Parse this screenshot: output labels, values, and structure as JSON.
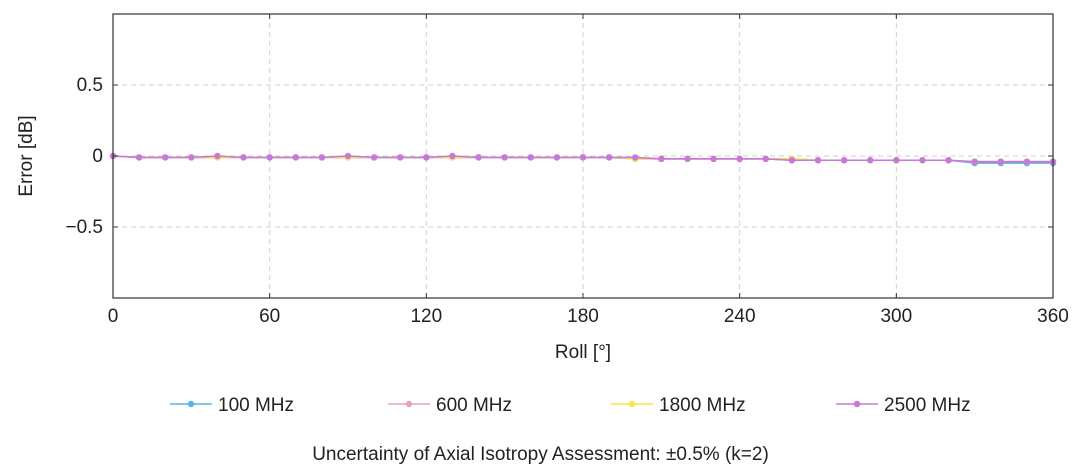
{
  "chart_data": {
    "type": "line",
    "xlabel": "Roll [°]",
    "ylabel": "Error [dB]",
    "xlim": [
      0,
      360
    ],
    "ylim": [
      -1,
      1
    ],
    "xticks": [
      0,
      60,
      120,
      180,
      240,
      300,
      360
    ],
    "xtick_labels": [
      "0",
      "60",
      "120",
      "180",
      "240",
      "300",
      "360"
    ],
    "yticks": [
      -0.5,
      0,
      0.5
    ],
    "ytick_labels": [
      "−0.5",
      "0",
      "0.5"
    ],
    "grid": true,
    "legend_position": "bottom",
    "x": [
      0,
      10,
      20,
      30,
      40,
      50,
      60,
      70,
      80,
      90,
      100,
      110,
      120,
      130,
      140,
      150,
      160,
      170,
      180,
      190,
      200,
      210,
      220,
      230,
      240,
      250,
      260,
      270,
      280,
      290,
      300,
      310,
      320,
      330,
      340,
      350,
      360
    ],
    "series": [
      {
        "name": "100 MHz",
        "color": "#5ab4e5",
        "values": [
          0,
          -0.01,
          -0.01,
          -0.01,
          -0.01,
          -0.01,
          -0.01,
          -0.01,
          -0.01,
          -0.01,
          -0.01,
          -0.01,
          -0.01,
          -0.01,
          -0.01,
          -0.01,
          -0.01,
          -0.01,
          -0.01,
          -0.01,
          -0.02,
          -0.02,
          -0.02,
          -0.02,
          -0.02,
          -0.02,
          -0.03,
          -0.03,
          -0.03,
          -0.03,
          -0.03,
          -0.03,
          -0.03,
          -0.05,
          -0.05,
          -0.05,
          -0.05
        ]
      },
      {
        "name": "600 MHz",
        "color": "#ee9fbf",
        "values": [
          0,
          -0.01,
          -0.01,
          -0.01,
          -0.01,
          -0.01,
          -0.01,
          -0.01,
          -0.01,
          -0.01,
          -0.01,
          -0.01,
          -0.01,
          -0.01,
          -0.01,
          -0.01,
          -0.01,
          -0.01,
          -0.01,
          -0.01,
          -0.02,
          -0.02,
          -0.02,
          -0.02,
          -0.02,
          -0.02,
          -0.02,
          -0.03,
          -0.03,
          -0.03,
          -0.03,
          -0.03,
          -0.03,
          -0.04,
          -0.04,
          -0.04,
          -0.04
        ]
      },
      {
        "name": "1800 MHz",
        "color": "#f4e84a",
        "values": [
          0,
          -0.01,
          -0.01,
          -0.01,
          -0.01,
          -0.01,
          -0.01,
          -0.01,
          -0.01,
          -0.01,
          -0.01,
          -0.01,
          -0.01,
          -0.01,
          -0.01,
          -0.01,
          -0.01,
          -0.01,
          -0.01,
          -0.01,
          -0.02,
          -0.02,
          -0.02,
          -0.02,
          -0.02,
          -0.02,
          -0.02,
          -0.03,
          -0.03,
          -0.03,
          -0.03,
          -0.03,
          -0.03,
          -0.04,
          -0.04,
          -0.04,
          -0.04
        ]
      },
      {
        "name": "2500 MHz",
        "color": "#c878d8",
        "values": [
          0,
          -0.01,
          -0.01,
          -0.01,
          0,
          -0.01,
          -0.01,
          -0.01,
          -0.01,
          0,
          -0.01,
          -0.01,
          -0.01,
          0,
          -0.01,
          -0.01,
          -0.01,
          -0.01,
          -0.01,
          -0.01,
          -0.01,
          -0.02,
          -0.02,
          -0.02,
          -0.02,
          -0.02,
          -0.03,
          -0.03,
          -0.03,
          -0.03,
          -0.03,
          -0.03,
          -0.03,
          -0.04,
          -0.04,
          -0.04,
          -0.04
        ]
      }
    ]
  },
  "caption": "Uncertainty of Axial Isotropy Assessment: ±0.5% (k=2)"
}
